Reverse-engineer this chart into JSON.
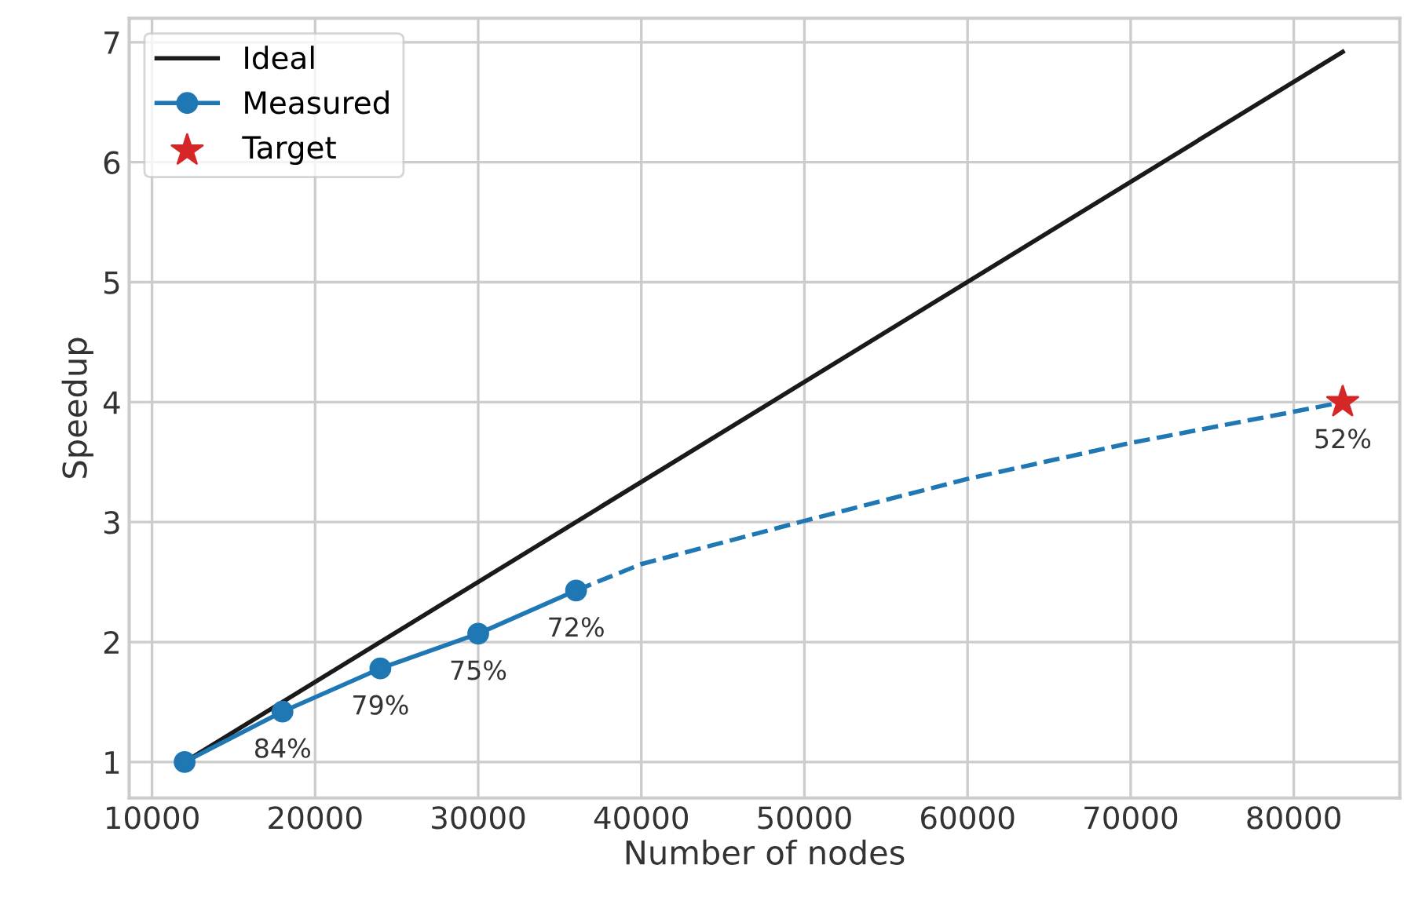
{
  "chart_data": {
    "type": "line",
    "xlabel": "Number of nodes",
    "ylabel": "Speedup",
    "xlim": [
      8600,
      86500
    ],
    "ylim": [
      0.7,
      7.2
    ],
    "xticks": [
      10000,
      20000,
      30000,
      40000,
      50000,
      60000,
      70000,
      80000
    ],
    "yticks": [
      1,
      2,
      3,
      4,
      5,
      6,
      7
    ],
    "grid": true,
    "legend": "top left",
    "series": [
      {
        "name": "Ideal",
        "color": "#1a1a1a",
        "x": [
          12000,
          83000
        ],
        "values": [
          1,
          6.92
        ],
        "marker": "none",
        "line_style": "solid"
      },
      {
        "name": "Measured",
        "color": "#1f77b4",
        "x": [
          12000,
          18000,
          24000,
          30000,
          36000
        ],
        "values": [
          1,
          1.42,
          1.78,
          2.07,
          2.43
        ],
        "marker": "circle",
        "line_style": "solid"
      },
      {
        "color": "#1f77b4",
        "x": [
          36000,
          40000,
          50000,
          60000,
          70000,
          80000,
          83000
        ],
        "values": [
          2.43,
          2.65,
          3.01,
          3.36,
          3.66,
          3.92,
          4.0
        ],
        "marker": "none",
        "line_style": "dashed"
      },
      {
        "name": "Target",
        "type": "scatter",
        "color": "#d62728",
        "x": [
          83000
        ],
        "values": [
          4.0
        ],
        "marker": "star"
      }
    ],
    "annotations": [
      {
        "text": "84%",
        "x": 18000,
        "y": 1.42
      },
      {
        "text": "79%",
        "x": 24000,
        "y": 1.78
      },
      {
        "text": "75%",
        "x": 30000,
        "y": 2.07
      },
      {
        "text": "72%",
        "x": 36000,
        "y": 2.43
      },
      {
        "text": "52%",
        "x": 83000,
        "y": 4.0
      }
    ]
  }
}
